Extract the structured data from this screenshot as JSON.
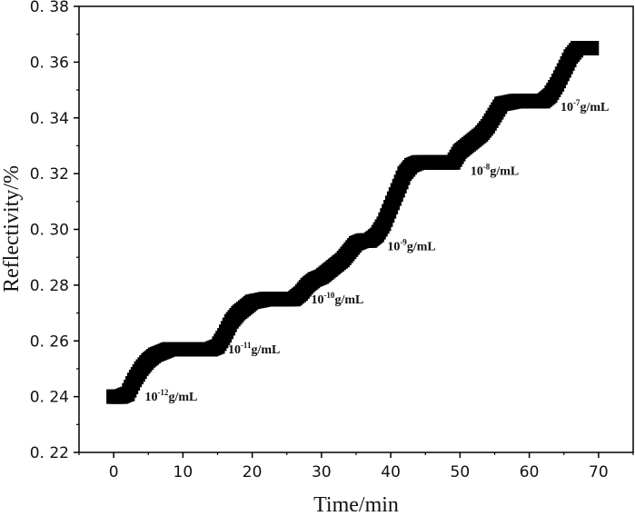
{
  "chart_data": {
    "type": "scatter",
    "title": "",
    "xlabel": "Time/min",
    "ylabel": "Reflectivity/%",
    "xlim": [
      -5,
      75
    ],
    "ylim": [
      0.22,
      0.38
    ],
    "grid": false,
    "legend": "none",
    "marker": "square",
    "color": "#000000",
    "x_ticks": [
      0,
      10,
      20,
      30,
      40,
      50,
      60,
      70
    ],
    "x_tick_labels": [
      "0",
      "10",
      "20",
      "30",
      "40",
      "50",
      "60",
      "70"
    ],
    "y_ticks": [
      0.22,
      0.24,
      0.26,
      0.28,
      0.3,
      0.32,
      0.34,
      0.36,
      0.38
    ],
    "y_tick_labels": [
      "0. 22",
      "0. 24",
      "0. 26",
      "0. 28",
      "0. 30",
      "0. 32",
      "0. 34",
      "0. 36",
      "0. 38"
    ],
    "series": [
      {
        "x": [
          0,
          1,
          2,
          3,
          4,
          5,
          6,
          7,
          8,
          10,
          12,
          14,
          15,
          16,
          17,
          18,
          19,
          20,
          22,
          24,
          25,
          26,
          27,
          28,
          29,
          30,
          31,
          32,
          33,
          34,
          35,
          36,
          37,
          38,
          39,
          40,
          41,
          42,
          43,
          44,
          46,
          48,
          49,
          50,
          51,
          52,
          53,
          54,
          55,
          56,
          58,
          60,
          62,
          63,
          64,
          65,
          66,
          67,
          68,
          69
        ],
        "y": [
          0.24,
          0.24,
          0.241,
          0.246,
          0.25,
          0.253,
          0.255,
          0.256,
          0.257,
          0.257,
          0.257,
          0.257,
          0.258,
          0.262,
          0.267,
          0.27,
          0.272,
          0.274,
          0.275,
          0.275,
          0.275,
          0.275,
          0.277,
          0.28,
          0.282,
          0.283,
          0.285,
          0.287,
          0.289,
          0.292,
          0.295,
          0.296,
          0.296,
          0.298,
          0.302,
          0.308,
          0.314,
          0.32,
          0.323,
          0.324,
          0.324,
          0.324,
          0.324,
          0.328,
          0.33,
          0.332,
          0.334,
          0.337,
          0.341,
          0.345,
          0.346,
          0.346,
          0.346,
          0.348,
          0.352,
          0.357,
          0.362,
          0.365,
          0.365,
          0.365
        ]
      }
    ],
    "annotations": [
      {
        "base": "10",
        "exp": "-12",
        "unit": "g/mL",
        "x": 4.5,
        "y": 0.2385
      },
      {
        "base": "10",
        "exp": "-11",
        "unit": "g/mL",
        "x": 16.5,
        "y": 0.2555
      },
      {
        "base": "10",
        "exp": "-10",
        "unit": "g/mL",
        "x": 28.5,
        "y": 0.2735
      },
      {
        "base": "10",
        "exp": "-9",
        "unit": "g/mL",
        "x": 39.5,
        "y": 0.2925
      },
      {
        "base": "10",
        "exp": "-8",
        "unit": "g/mL",
        "x": 51.5,
        "y": 0.3195
      },
      {
        "base": "10",
        "exp": "-7",
        "unit": "g/mL",
        "x": 64.5,
        "y": 0.3425
      }
    ]
  }
}
